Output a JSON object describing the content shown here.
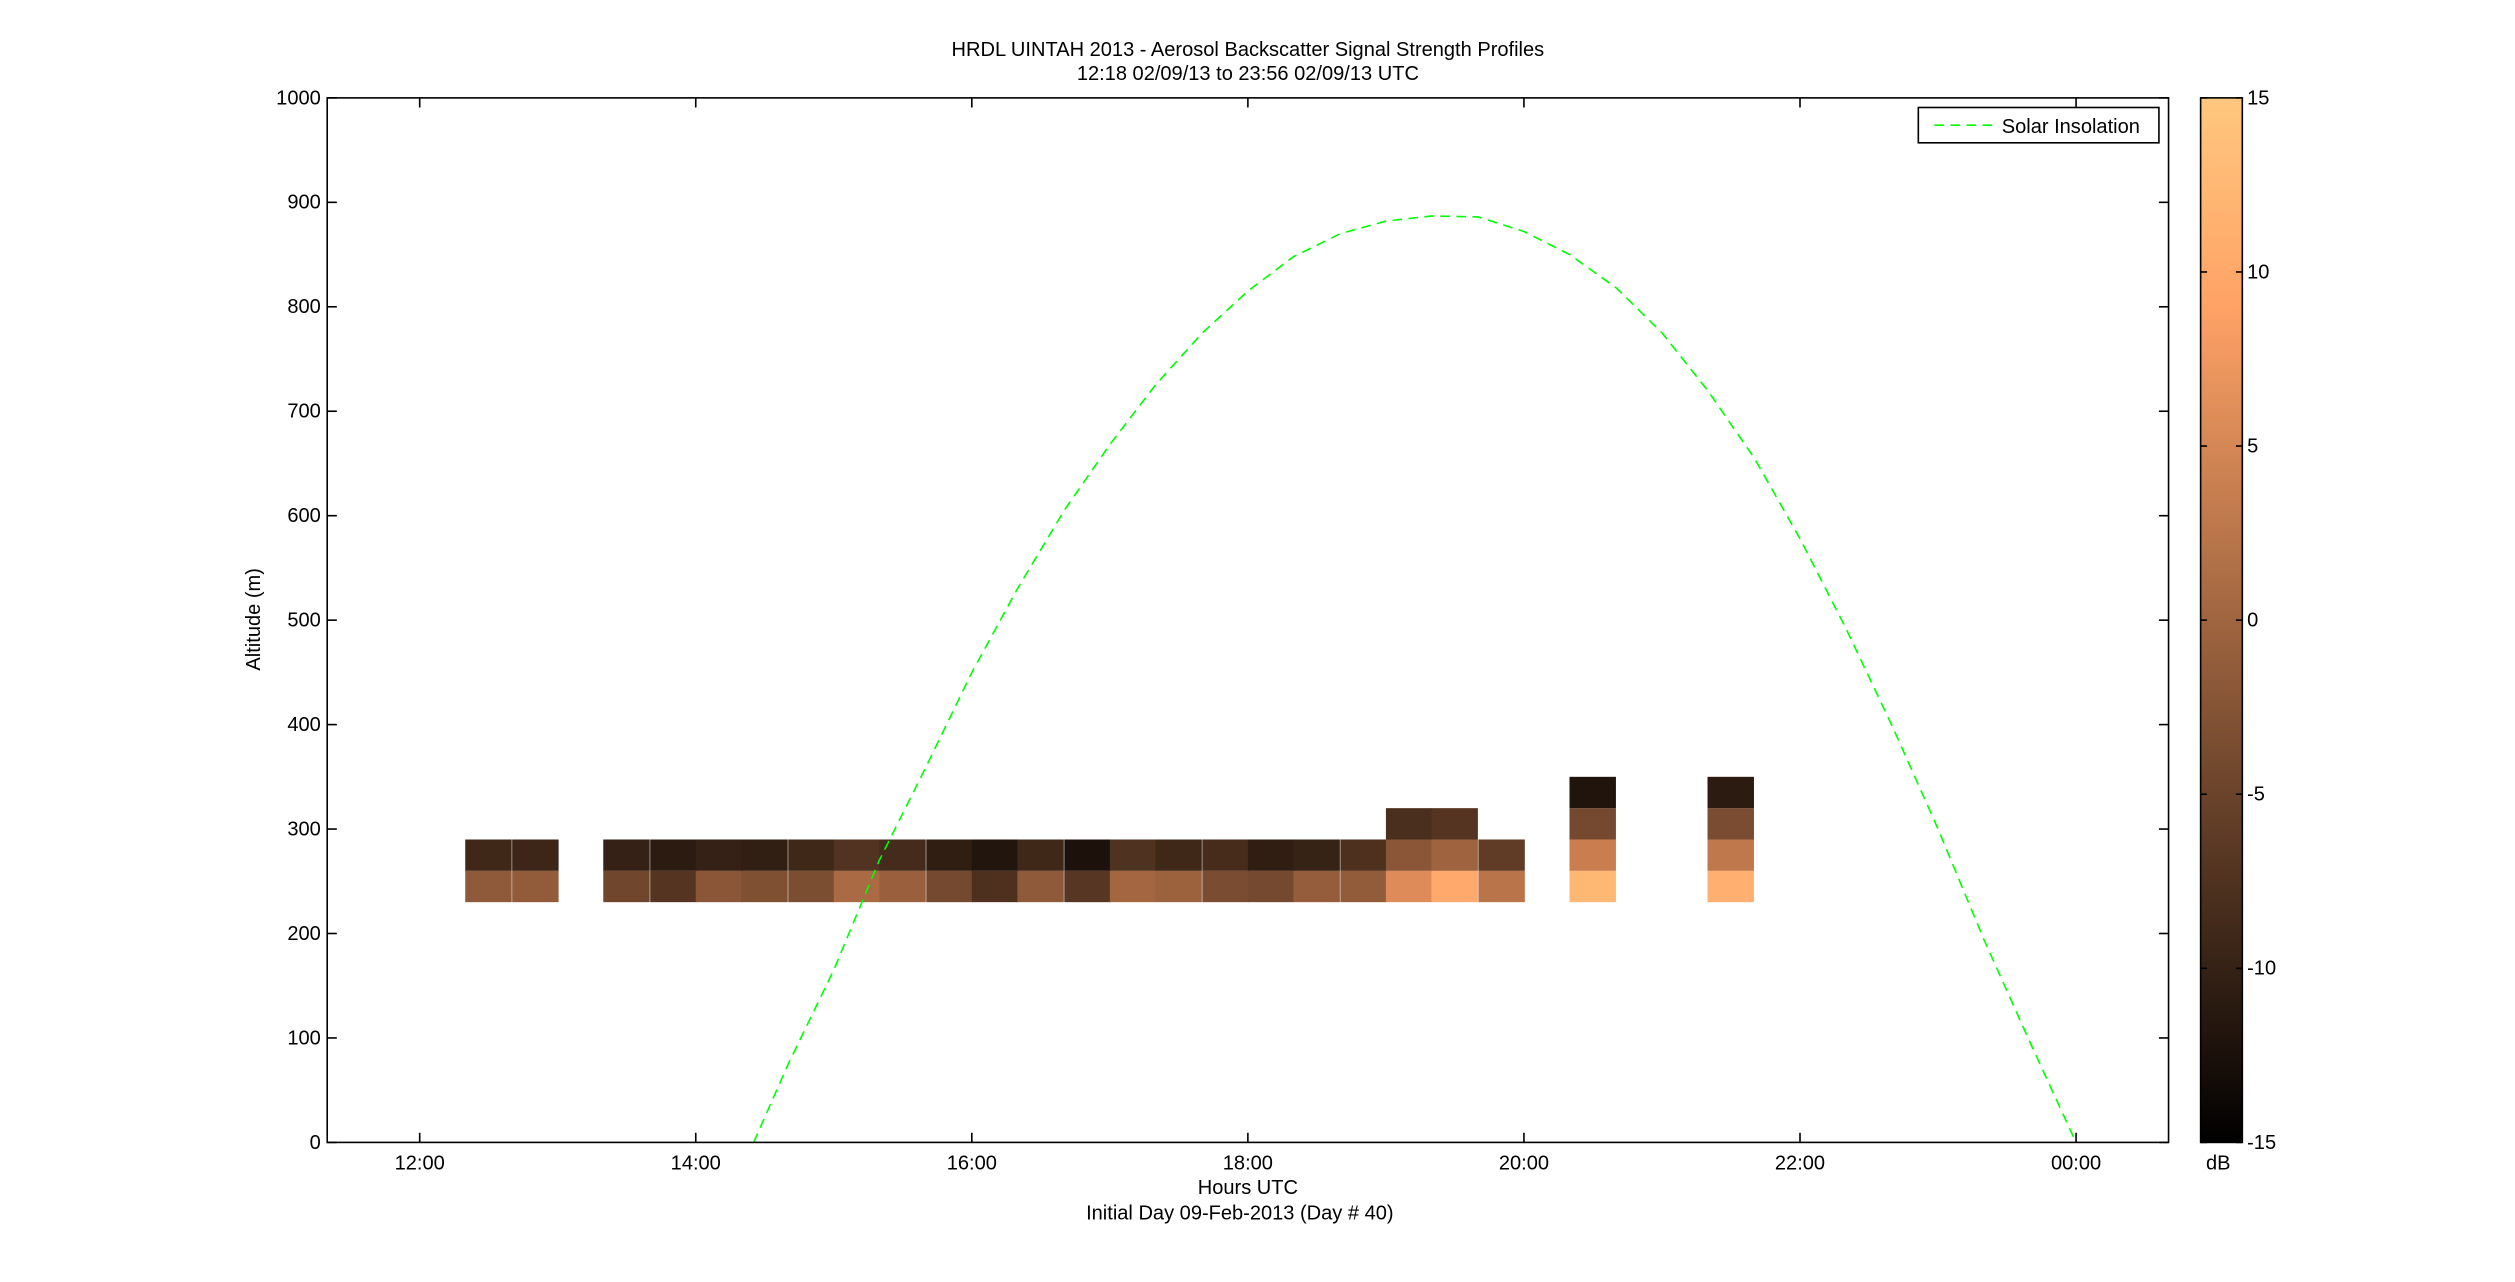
{
  "chart_data": {
    "type": "heatmap",
    "title": "HRDL UINTAH 2013 - Aerosol Backscatter Signal Strength Profiles",
    "subtitle": "12:18 02/09/13 to 23:56 02/09/13  UTC",
    "xlabel": "Hours UTC",
    "xlabel2": "Initial Day 09-Feb-2013 (Day # 40)",
    "ylabel": "Altitude (m)",
    "xlim": [
      11.33,
      24.67
    ],
    "ylim": [
      0,
      1000
    ],
    "x_ticks": [
      {
        "value": 12,
        "label": "12:00"
      },
      {
        "value": 14,
        "label": "14:00"
      },
      {
        "value": 16,
        "label": "16:00"
      },
      {
        "value": 18,
        "label": "18:00"
      },
      {
        "value": 20,
        "label": "20:00"
      },
      {
        "value": 22,
        "label": "22:00"
      },
      {
        "value": 24,
        "label": "00:00"
      }
    ],
    "y_ticks": [
      0,
      100,
      200,
      300,
      400,
      500,
      600,
      700,
      800,
      900,
      1000
    ],
    "colorbar": {
      "label": "dB",
      "range": [
        -15,
        15
      ],
      "ticks": [
        -15,
        -10,
        -5,
        0,
        5,
        10,
        15
      ],
      "colormap": "copper"
    },
    "legend": {
      "position": "top-right",
      "entries": [
        {
          "name": "Solar Insolation",
          "color": "#00ff00",
          "style": "dashed"
        }
      ]
    },
    "cell_width_hours": 0.333,
    "cell_height_m": 30,
    "cells": [
      {
        "t": 12.33,
        "alt": 230,
        "db": -1.5
      },
      {
        "t": 12.33,
        "alt": 260,
        "db": -9.0
      },
      {
        "t": 12.67,
        "alt": 230,
        "db": -1.3
      },
      {
        "t": 12.67,
        "alt": 260,
        "db": -9.3
      },
      {
        "t": 13.33,
        "alt": 230,
        "db": -4.5
      },
      {
        "t": 13.33,
        "alt": 260,
        "db": -10.0
      },
      {
        "t": 13.67,
        "alt": 230,
        "db": -7.0
      },
      {
        "t": 13.67,
        "alt": 260,
        "db": -11.0
      },
      {
        "t": 14.0,
        "alt": 230,
        "db": -2.0
      },
      {
        "t": 14.0,
        "alt": 260,
        "db": -10.0
      },
      {
        "t": 14.33,
        "alt": 230,
        "db": -3.0
      },
      {
        "t": 14.33,
        "alt": 260,
        "db": -10.3
      },
      {
        "t": 14.67,
        "alt": 230,
        "db": -3.3
      },
      {
        "t": 14.67,
        "alt": 260,
        "db": -9.0
      },
      {
        "t": 15.0,
        "alt": 230,
        "db": 1.0
      },
      {
        "t": 15.0,
        "alt": 260,
        "db": -7.3
      },
      {
        "t": 15.33,
        "alt": 230,
        "db": -0.5
      },
      {
        "t": 15.33,
        "alt": 260,
        "db": -8.5
      },
      {
        "t": 15.67,
        "alt": 230,
        "db": -4.0
      },
      {
        "t": 15.67,
        "alt": 260,
        "db": -10.5
      },
      {
        "t": 16.0,
        "alt": 230,
        "db": -7.8
      },
      {
        "t": 16.0,
        "alt": 260,
        "db": -11.8
      },
      {
        "t": 16.33,
        "alt": 230,
        "db": -1.5
      },
      {
        "t": 16.33,
        "alt": 260,
        "db": -9.0
      },
      {
        "t": 16.67,
        "alt": 230,
        "db": -6.8
      },
      {
        "t": 16.67,
        "alt": 260,
        "db": -12.3
      },
      {
        "t": 17.0,
        "alt": 230,
        "db": 0.3
      },
      {
        "t": 17.0,
        "alt": 260,
        "db": -7.5
      },
      {
        "t": 17.33,
        "alt": 230,
        "db": -0.3
      },
      {
        "t": 17.33,
        "alt": 260,
        "db": -9.0
      },
      {
        "t": 17.67,
        "alt": 230,
        "db": -3.5
      },
      {
        "t": 17.67,
        "alt": 260,
        "db": -8.3
      },
      {
        "t": 18.0,
        "alt": 230,
        "db": -4.0
      },
      {
        "t": 18.0,
        "alt": 260,
        "db": -10.5
      },
      {
        "t": 18.33,
        "alt": 230,
        "db": -1.0
      },
      {
        "t": 18.33,
        "alt": 260,
        "db": -9.8
      },
      {
        "t": 18.67,
        "alt": 230,
        "db": -1.3
      },
      {
        "t": 18.67,
        "alt": 260,
        "db": -7.8
      },
      {
        "t": 19.0,
        "alt": 230,
        "db": 6.0
      },
      {
        "t": 19.0,
        "alt": 260,
        "db": -2.0
      },
      {
        "t": 19.0,
        "alt": 290,
        "db": -8.0
      },
      {
        "t": 19.33,
        "alt": 230,
        "db": 10.5
      },
      {
        "t": 19.33,
        "alt": 260,
        "db": 0.0
      },
      {
        "t": 19.33,
        "alt": 290,
        "db": -7.0
      },
      {
        "t": 19.67,
        "alt": 230,
        "db": 2.5
      },
      {
        "t": 19.67,
        "alt": 260,
        "db": -6.0
      },
      {
        "t": 20.33,
        "alt": 230,
        "db": 12.5
      },
      {
        "t": 20.33,
        "alt": 260,
        "db": 4.0
      },
      {
        "t": 20.33,
        "alt": 290,
        "db": -4.0
      },
      {
        "t": 20.33,
        "alt": 320,
        "db": -12.0
      },
      {
        "t": 21.33,
        "alt": 230,
        "db": 11.5
      },
      {
        "t": 21.33,
        "alt": 260,
        "db": 3.0
      },
      {
        "t": 21.33,
        "alt": 290,
        "db": -3.5
      },
      {
        "t": 21.33,
        "alt": 320,
        "db": -11.0
      }
    ],
    "solar_insolation_curve": [
      {
        "x": 14.42,
        "y": 0
      },
      {
        "x": 14.67,
        "y": 75
      },
      {
        "x": 15.0,
        "y": 165
      },
      {
        "x": 15.33,
        "y": 270
      },
      {
        "x": 15.67,
        "y": 360
      },
      {
        "x": 16.0,
        "y": 450
      },
      {
        "x": 16.33,
        "y": 530
      },
      {
        "x": 16.67,
        "y": 605
      },
      {
        "x": 17.0,
        "y": 668
      },
      {
        "x": 17.33,
        "y": 725
      },
      {
        "x": 17.67,
        "y": 775
      },
      {
        "x": 18.0,
        "y": 815
      },
      {
        "x": 18.33,
        "y": 848
      },
      {
        "x": 18.67,
        "y": 870
      },
      {
        "x": 19.0,
        "y": 882
      },
      {
        "x": 19.33,
        "y": 887
      },
      {
        "x": 19.67,
        "y": 886
      },
      {
        "x": 20.0,
        "y": 872
      },
      {
        "x": 20.33,
        "y": 850
      },
      {
        "x": 20.67,
        "y": 818
      },
      {
        "x": 21.0,
        "y": 775
      },
      {
        "x": 21.33,
        "y": 720
      },
      {
        "x": 21.67,
        "y": 655
      },
      {
        "x": 22.0,
        "y": 578
      },
      {
        "x": 22.33,
        "y": 493
      },
      {
        "x": 22.67,
        "y": 398
      },
      {
        "x": 23.0,
        "y": 300
      },
      {
        "x": 23.33,
        "y": 195
      },
      {
        "x": 23.67,
        "y": 95
      },
      {
        "x": 24.0,
        "y": 0
      }
    ]
  }
}
